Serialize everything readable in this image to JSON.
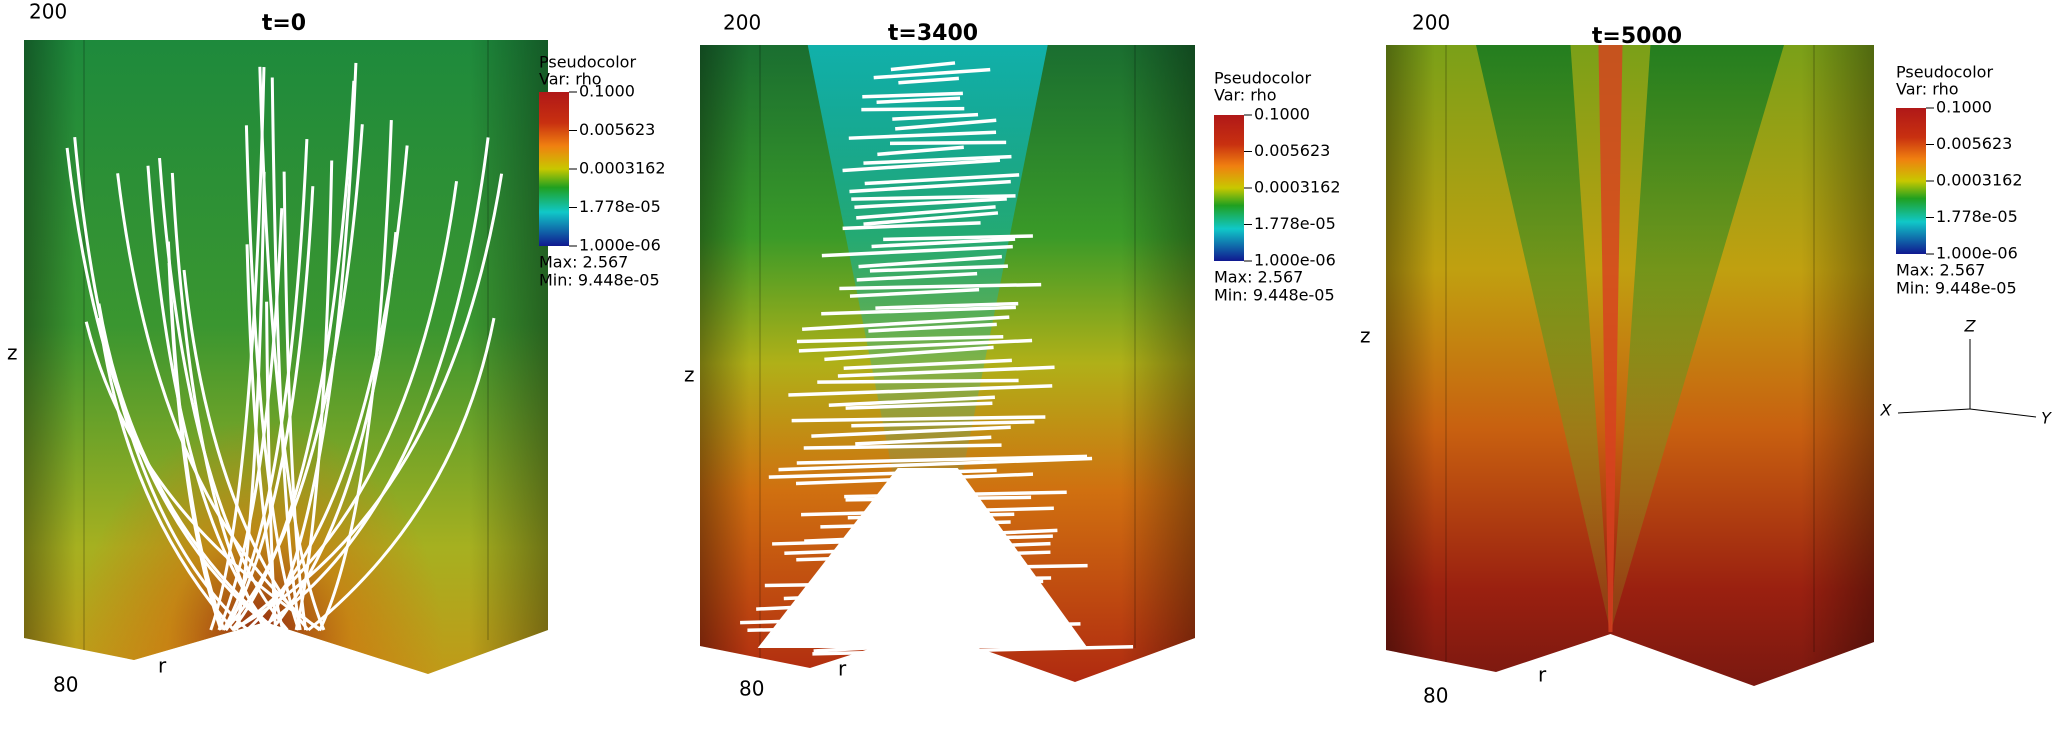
{
  "panels": [
    {
      "title": "t=0",
      "z_top": "200",
      "z_bottom": "80",
      "z_label": "z",
      "r_label": "r",
      "legend": {
        "title": "Pseudocolor",
        "var": "Var: rho",
        "ticks": [
          "0.1000",
          "0.005623",
          "0.0003162",
          "1.778e-05",
          "1.000e-06"
        ],
        "max": "Max:  2.567",
        "min": "Min:  9.448e-05"
      }
    },
    {
      "title": "t=3400",
      "z_top": "200",
      "z_bottom": "80",
      "z_label": "z",
      "r_label": "r",
      "legend": {
        "title": "Pseudocolor",
        "var": "Var: rho",
        "ticks": [
          "0.1000",
          "0.005623",
          "0.0003162",
          "1.778e-05",
          "1.000e-06"
        ],
        "max": "Max:  2.567",
        "min": "Min:  9.448e-05"
      }
    },
    {
      "title": "t=5000",
      "z_top": "200",
      "z_bottom": "80",
      "z_label": "z",
      "r_label": "r",
      "legend": {
        "title": "Pseudocolor",
        "var": "Var: rho",
        "ticks": [
          "0.1000",
          "0.005623",
          "0.0003162",
          "1.778e-05",
          "1.000e-06"
        ],
        "max": "Max:  2.567",
        "min": "Min:  9.448e-05"
      }
    }
  ],
  "axis_triad": {
    "z": "Z",
    "x": "X",
    "y": "Y"
  }
}
